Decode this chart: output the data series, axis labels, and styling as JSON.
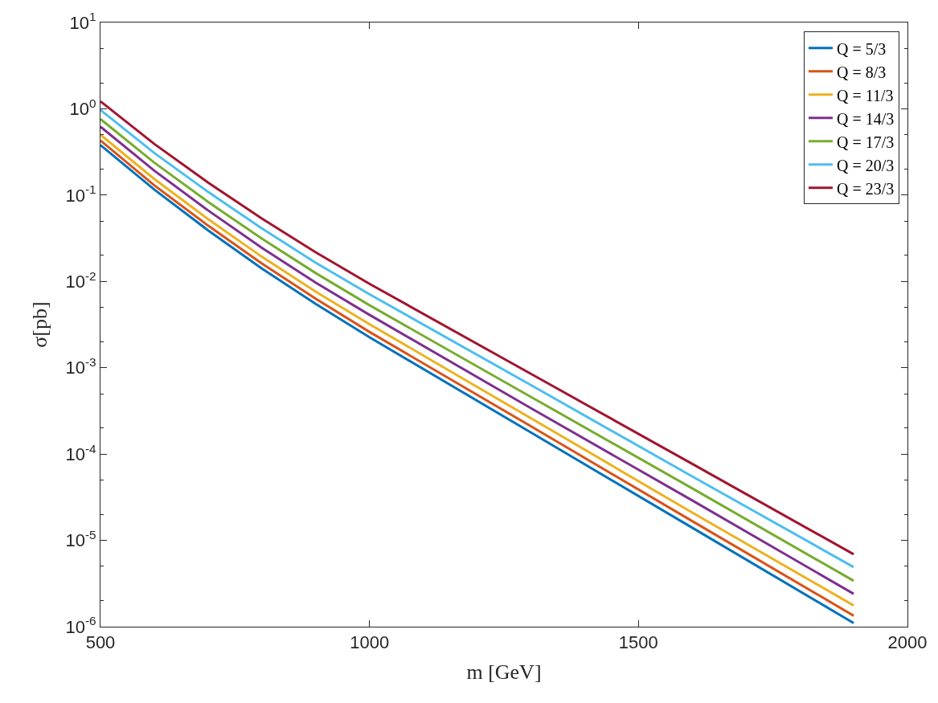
{
  "chart_data": {
    "type": "line",
    "xlabel": "m [GeV]",
    "ylabel": "σ[pb]",
    "x": [
      500,
      600,
      700,
      800,
      900,
      1000,
      1300,
      1600,
      1900
    ],
    "series": [
      {
        "name": "Q = 5/3",
        "color": "#0072bd",
        "values": [
          0.38,
          0.116,
          0.0391,
          0.0141,
          0.0055,
          0.00226,
          0.000178,
          1.4e-05,
          1.1e-06
        ]
      },
      {
        "name": "Q = 8/3",
        "color": "#d95319",
        "values": [
          0.43,
          0.13,
          0.0443,
          0.0161,
          0.0063,
          0.0026,
          0.00021,
          1.67e-05,
          1.34e-06
        ]
      },
      {
        "name": "Q = 11/3",
        "color": "#edb120",
        "values": [
          0.5,
          0.154,
          0.0527,
          0.0193,
          0.0076,
          0.0032,
          0.00026,
          2.1e-05,
          1.76e-06
        ]
      },
      {
        "name": "Q = 14/3",
        "color": "#7e2f8e",
        "values": [
          0.62,
          0.192,
          0.0665,
          0.0245,
          0.0097,
          0.0041,
          0.00034,
          2.9e-05,
          2.4e-06
        ]
      },
      {
        "name": "Q = 17/3",
        "color": "#77ac30",
        "values": [
          0.76,
          0.238,
          0.0834,
          0.0313,
          0.0125,
          0.0053,
          0.00046,
          4e-05,
          3.4e-06
        ]
      },
      {
        "name": "Q = 20/3",
        "color": "#4dbeee",
        "values": [
          0.97,
          0.308,
          0.109,
          0.0411,
          0.0165,
          0.0071,
          0.00063,
          5.5e-05,
          4.9e-06
        ]
      },
      {
        "name": "Q = 23/3",
        "color": "#a2142f",
        "values": [
          1.22,
          0.392,
          0.14,
          0.0535,
          0.0218,
          0.0094,
          0.00085,
          7.7e-05,
          6.9e-06
        ]
      }
    ],
    "xlim": [
      500,
      2000
    ],
    "xticks": [
      500,
      1000,
      1500,
      2000
    ],
    "ylim": [
      1e-06,
      10
    ],
    "yticks": [
      {
        "value": 1e-06,
        "label": "10$^{-6}$"
      },
      {
        "value": 1e-05,
        "label": "10$^{-5}$"
      },
      {
        "value": 0.0001,
        "label": "10$^{-4}$"
      },
      {
        "value": 0.001,
        "label": "10$^{-3}$"
      },
      {
        "value": 0.01,
        "label": "10$^{-2}$"
      },
      {
        "value": 0.1,
        "label": "10$^{-1}$"
      },
      {
        "value": 1,
        "label": "10$^{0}$"
      },
      {
        "value": 10,
        "label": "10$^{1}$"
      }
    ],
    "log": true,
    "grid": false,
    "legend": "top right",
    "marker": "none",
    "line_style": "solid"
  }
}
